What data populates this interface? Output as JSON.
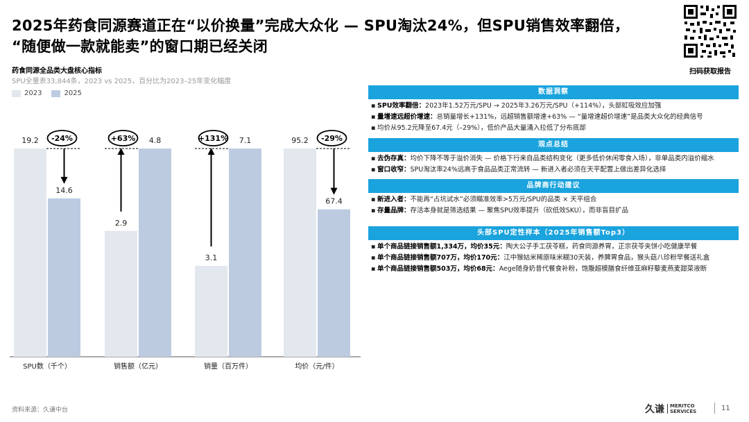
{
  "header": {
    "title_line1": "2025年药食同源赛道正在“以价换量”完成大众化 — SPU淘汰24%，但SPU销售效率翻倍，",
    "title_line2": "“随便做一款就能卖”的窗口期已经关闭",
    "qr_caption": "扫码获取报告"
  },
  "chart_header": {
    "title": "药食同源全品类大盘核心指标",
    "subtitle": "SPU全量表33,844条，2023 vs 2025，百分比为2023–25年变化幅度"
  },
  "colors": {
    "bar_2023": "#e3e7ee",
    "bar_2025": "#bccbe0",
    "accent": "#1aa3dd"
  },
  "chart_data": {
    "type": "bar",
    "title": "药食同源全品类大盘核心指标",
    "subtitle": "SPU全量表33,844条，2023 vs 2025，百分比为2023–25年变化幅度",
    "legend": [
      "2023",
      "2025"
    ],
    "legend_position": "top-left",
    "grid": false,
    "normalized_per_category": true,
    "series_names": [
      "2023",
      "2025"
    ],
    "groups": [
      {
        "category": "SPU数（千个）",
        "v2023": 19.2,
        "v2025": 14.6,
        "change": "-24%"
      },
      {
        "category": "销售额（亿元）",
        "v2023": 2.9,
        "v2025": 4.8,
        "change": "+63%"
      },
      {
        "category": "销量（百万件）",
        "v2023": 3.1,
        "v2025": 7.1,
        "change": "+131%"
      },
      {
        "category": "均价（元/件）",
        "v2023": 95.2,
        "v2025": 67.4,
        "change": "-29%"
      }
    ]
  },
  "panel": {
    "sections": [
      {
        "heading": "数据洞察",
        "bullets": [
          {
            "bold": "SPU效率翻倍：",
            "text": "2023年1.52万元/SPU → 2025年3.26万元/SPU（+114%），头部虹吸效应加强"
          },
          {
            "bold": "量增速远超价增速：",
            "text": "总销量增长+131%，远超销售额增速+63% — “量增速超价增速”是品类大众化的经典信号"
          },
          {
            "bold": "",
            "text": "均价从95.2元降至67.4元（–29%），低价产品大量涌入拉低了分布底部"
          }
        ]
      },
      {
        "heading": "观点总结",
        "bullets": [
          {
            "bold": "去伪存真：",
            "text": "均价下降不等于溢价消失 — 价格下行来自品类结构变化（更多低价休闲零食入场），非单品类内溢价缩水"
          },
          {
            "bold": "窗口收窄：",
            "text": "SPU淘汰率24%远高于食品品类正常流转 — 新进入者必须在天平配置上做出差异化选择"
          }
        ]
      },
      {
        "heading": "品牌商行动建议",
        "bullets": [
          {
            "bold": "新进入者：",
            "text": "不能再“占坑试水”必须瞄准效率>5万元/SPU的品类 × 天平组合"
          },
          {
            "bold": "存量品牌：",
            "text": "存活本身就是筛选结果 — 聚焦SPU效率提升（砍低效SKU），而非盲目扩品"
          }
        ]
      },
      {
        "heading": "头部SPU定性样本（2025年销售额Top3）",
        "bullets": [
          {
            "bold": "单个商品链接销售额1,334万，均价35元：",
            "text": "陶大公子手工茯苓糕，药食同源养胃，正宗茯苓夹饼小吃健康早餐"
          },
          {
            "bold": "单个商品链接销售额707万，均价170元：",
            "text": "江中猴姑米稀原味米糊30天装，养脾胃食品，猴头菇八珍粉早餐送礼盒"
          },
          {
            "bold": "单个商品链接销售额503万，均价68元：",
            "text": "Aege随身奶昔代餐食补粉，饱腹超模膳食纤维亚麻籽藜麦燕麦甜菜液断"
          }
        ]
      }
    ]
  },
  "footer": {
    "source": "资料来源：久谦中台",
    "logo_cn": "久谦",
    "logo_en_1": "MERITCO",
    "logo_en_2": "SERVICES",
    "page_number": "11"
  }
}
